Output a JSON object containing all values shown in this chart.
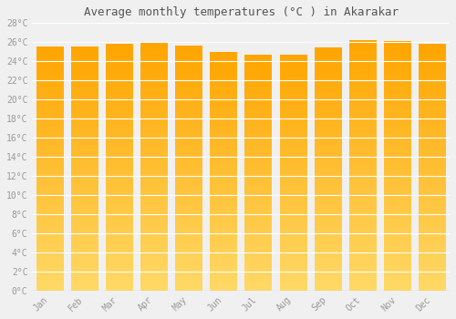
{
  "title": "Average monthly temperatures (°C ) in Akarakar",
  "months": [
    "Jan",
    "Feb",
    "Mar",
    "Apr",
    "May",
    "Jun",
    "Jul",
    "Aug",
    "Sep",
    "Oct",
    "Nov",
    "Dec"
  ],
  "values": [
    25.5,
    25.5,
    25.8,
    25.9,
    25.6,
    25.0,
    24.7,
    24.7,
    25.4,
    26.2,
    26.1,
    25.8
  ],
  "bar_color_top": "#FFA500",
  "bar_color_bottom": "#FFD966",
  "background_color": "#F0F0F0",
  "grid_color": "#FFFFFF",
  "tick_label_color": "#999999",
  "title_color": "#555555",
  "ylim": [
    0,
    28
  ],
  "ytick_step": 2,
  "ylabel_suffix": "°C"
}
